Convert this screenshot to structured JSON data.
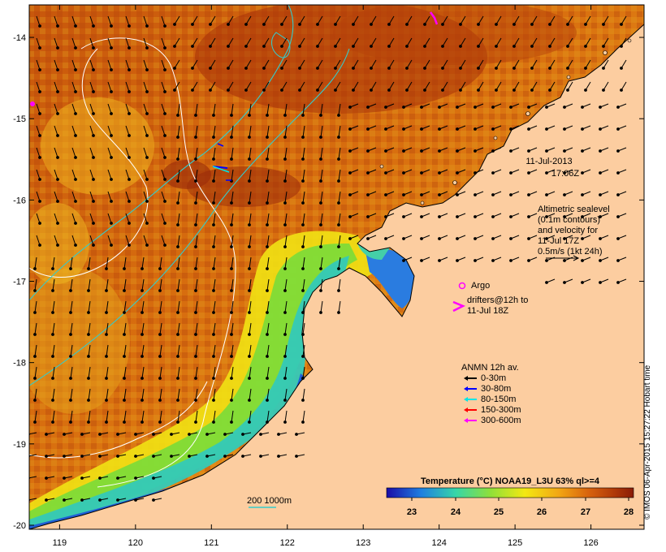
{
  "map": {
    "lon_range": [
      118.6,
      126.7
    ],
    "lat_range": [
      -20.05,
      -13.6
    ],
    "lon_ticks": [
      119,
      120,
      121,
      122,
      123,
      124,
      125,
      126
    ],
    "lat_ticks": [
      -14,
      -15,
      -16,
      -17,
      -18,
      -19,
      -20
    ],
    "ocean_colormap": [
      "#1a0ca8",
      "#1f8ee0",
      "#36d6a8",
      "#8ee03a",
      "#f3e812",
      "#f29a14",
      "#d7620d",
      "#b03a08",
      "#8a1c08"
    ],
    "land_color": "#fccda0"
  },
  "annotations": {
    "date": "11-Jul-2013",
    "time": "17:06Z",
    "altimetry_lines": [
      "Altimetric sealevel",
      "(0.1m contours)",
      "and velocity for",
      "11-Jul 17Z",
      "0.5m/s (1kt 24h)"
    ],
    "argo": "Argo",
    "drifters_lines": [
      "drifters@12h to",
      "11-Jul 18Z"
    ],
    "anmn_title": "ANMN 12h av.",
    "anmn_items": [
      {
        "label": "0-30m",
        "color": "#000000"
      },
      {
        "label": "30-80m",
        "color": "#0000ff"
      },
      {
        "label": "80-150m",
        "color": "#00e6e6"
      },
      {
        "label": "150-300m",
        "color": "#ff0000"
      },
      {
        "label": "300-600m",
        "color": "#ff00ff"
      }
    ],
    "depth_contours": "200  1000m",
    "colorbar_title": "Temperature (°C) NOAA19_L3U 63% ql>=4",
    "colorbar_ticks": [
      "23",
      "24",
      "25",
      "26",
      "27",
      "28"
    ],
    "credit": "© IMOS 06-Apr-2015 15:27:22 Hobart time"
  }
}
